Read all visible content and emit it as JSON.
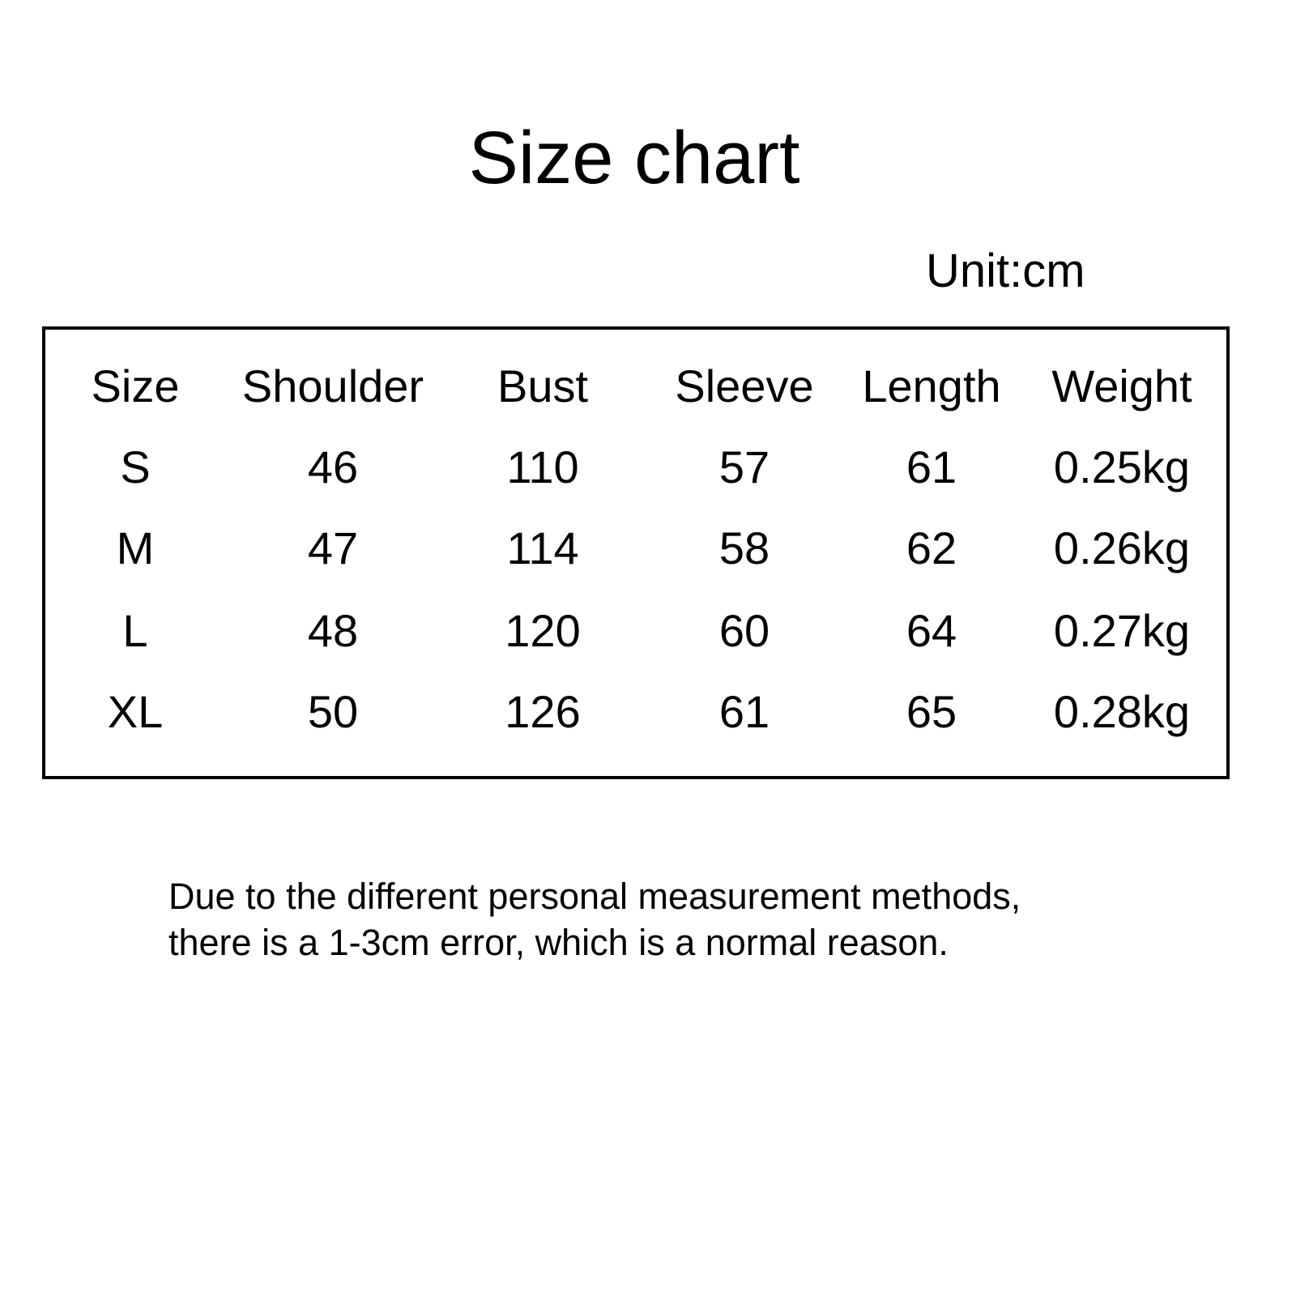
{
  "title": "Size chart",
  "unit": "Unit:cm",
  "table": {
    "headers": [
      "Size",
      "Shoulder",
      "Bust",
      "Sleeve",
      "Length",
      "Weight"
    ],
    "rows": [
      [
        "S",
        "46",
        "110",
        "57",
        "61",
        "0.25kg"
      ],
      [
        "M",
        "47",
        "114",
        "58",
        "62",
        "0.26kg"
      ],
      [
        "L",
        "48",
        "120",
        "60",
        "64",
        "0.27kg"
      ],
      [
        "XL",
        "50",
        "126",
        "61",
        "65",
        "0.28kg"
      ]
    ]
  },
  "note": {
    "line1": "Due to the different personal measurement methods,",
    "line2": "there is a 1-3cm error, which is a normal reason."
  }
}
